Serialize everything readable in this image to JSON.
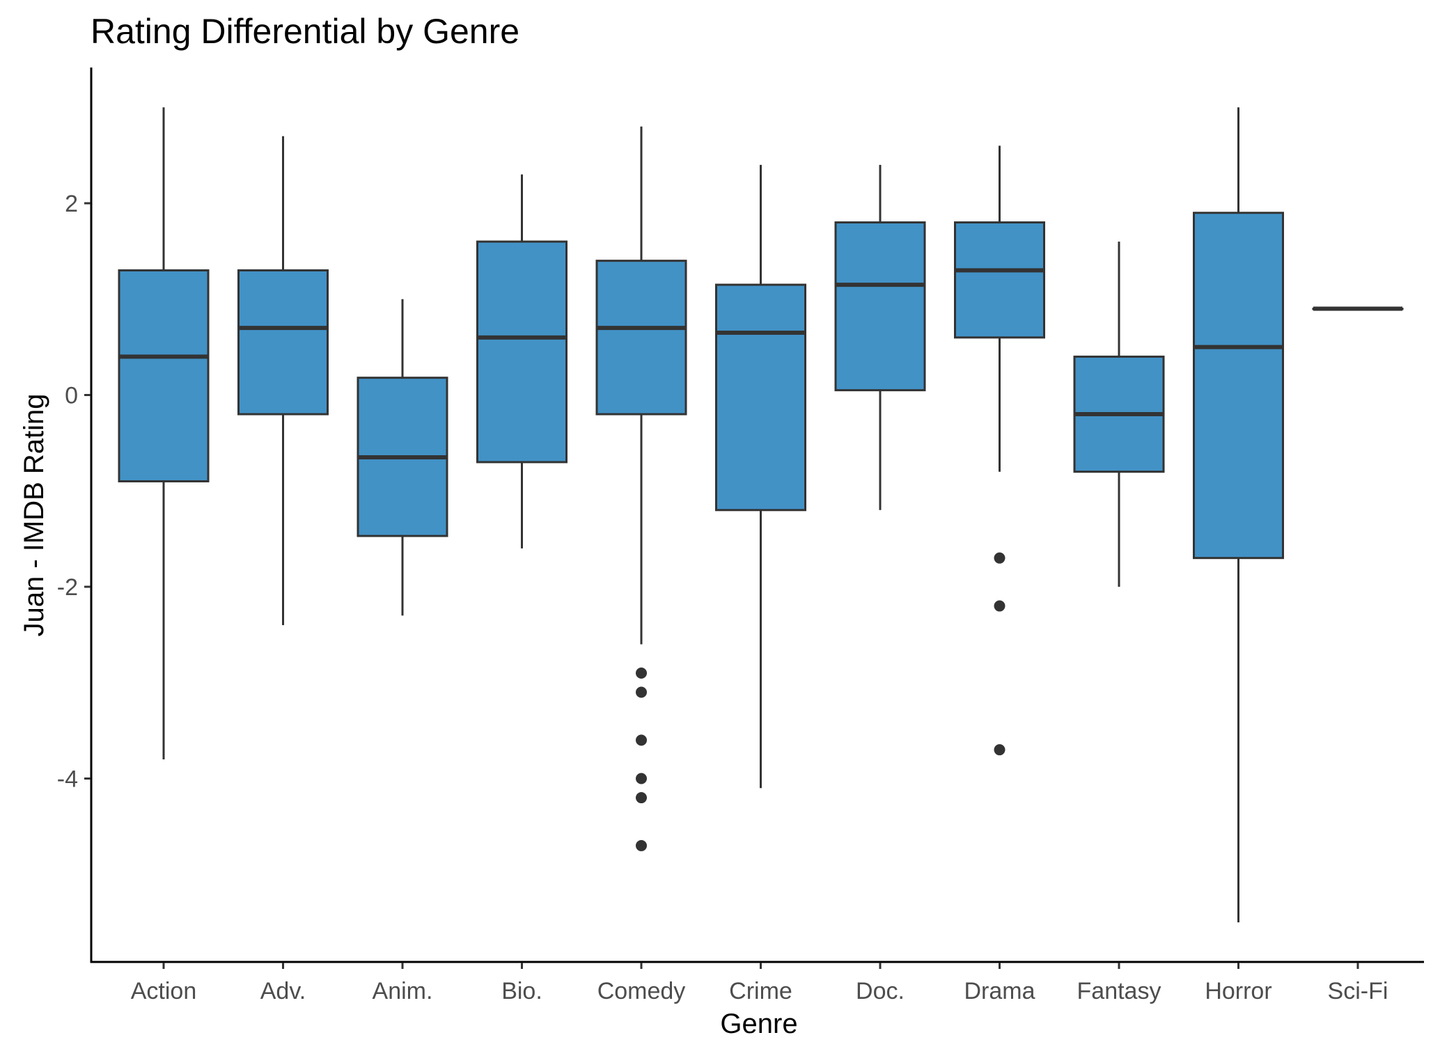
{
  "chart_data": {
    "type": "boxplot",
    "title": "Rating Differential by Genre",
    "xlabel": "Genre",
    "ylabel": "Juan - IMDB Rating",
    "ylim": [
      -5.9,
      3.4
    ],
    "yticks": [
      -4,
      -2,
      0,
      2
    ],
    "grid": false,
    "fill_color": "#4292c6",
    "outline_color": "#333333",
    "categories": [
      "Action",
      "Adv.",
      "Anim.",
      "Bio.",
      "Comedy",
      "Crime",
      "Doc.",
      "Drama",
      "Fantasy",
      "Horror",
      "Sci-Fi"
    ],
    "series": [
      {
        "category": "Action",
        "min": -3.8,
        "q1": -0.9,
        "median": 0.4,
        "q3": 1.3,
        "max": 3.0,
        "outliers": []
      },
      {
        "category": "Adv.",
        "min": -2.4,
        "q1": -0.2,
        "median": 0.7,
        "q3": 1.3,
        "max": 2.7,
        "outliers": []
      },
      {
        "category": "Anim.",
        "min": -2.3,
        "q1": -1.47,
        "median": -0.65,
        "q3": 0.18,
        "max": 1.0,
        "outliers": []
      },
      {
        "category": "Bio.",
        "min": -1.6,
        "q1": -0.7,
        "median": 0.6,
        "q3": 1.6,
        "max": 2.3,
        "outliers": []
      },
      {
        "category": "Comedy",
        "min": -2.6,
        "q1": -0.2,
        "median": 0.7,
        "q3": 1.4,
        "max": 2.8,
        "outliers": [
          -2.9,
          -3.1,
          -3.6,
          -4.0,
          -4.2,
          -4.7
        ]
      },
      {
        "category": "Crime",
        "min": -4.1,
        "q1": -1.2,
        "median": 0.65,
        "q3": 1.15,
        "max": 2.4,
        "outliers": []
      },
      {
        "category": "Doc.",
        "min": -1.2,
        "q1": 0.05,
        "median": 1.15,
        "q3": 1.8,
        "max": 2.4,
        "outliers": []
      },
      {
        "category": "Drama",
        "min": -0.8,
        "q1": 0.6,
        "median": 1.3,
        "q3": 1.8,
        "max": 2.6,
        "outliers": [
          -1.7,
          -2.2,
          -3.7
        ]
      },
      {
        "category": "Fantasy",
        "min": -2.0,
        "q1": -0.8,
        "median": -0.2,
        "q3": 0.4,
        "max": 1.6,
        "outliers": []
      },
      {
        "category": "Horror",
        "min": -5.5,
        "q1": -1.7,
        "median": 0.5,
        "q3": 1.9,
        "max": 3.0,
        "outliers": []
      },
      {
        "category": "Sci-Fi",
        "min": 0.9,
        "q1": 0.9,
        "median": 0.9,
        "q3": 0.9,
        "max": 0.9,
        "outliers": []
      }
    ]
  }
}
